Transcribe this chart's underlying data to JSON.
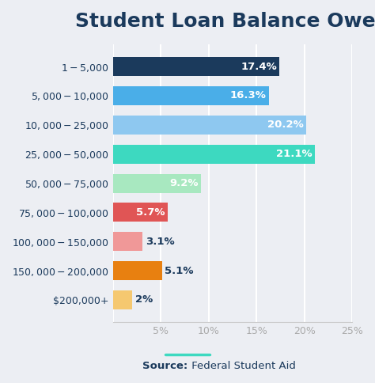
{
  "title": "Student Loan Balance Owed",
  "categories": [
    "$1-$5,000",
    "$5,000-$10,000",
    "$10,000-$25,000",
    "$25,000-$50,000",
    "$50,000-$75,000",
    "$75,000-$100,000",
    "$100,000-$150,000",
    "$150,000-$200,000",
    "$200,000+"
  ],
  "values": [
    17.4,
    16.3,
    20.2,
    21.1,
    9.2,
    5.7,
    3.1,
    5.1,
    2.0
  ],
  "labels": [
    "17.4%",
    "16.3%",
    "20.2%",
    "21.1%",
    "9.2%",
    "5.7%",
    "3.1%",
    "5.1%",
    "2%"
  ],
  "bar_colors": [
    "#1b3a5c",
    "#4aaee8",
    "#8ec8f0",
    "#3dd9c0",
    "#a8e8c0",
    "#e05555",
    "#f09898",
    "#e88010",
    "#f5c870"
  ],
  "label_colors_white": [
    true,
    true,
    true,
    true,
    true,
    true,
    false,
    false,
    false
  ],
  "label_inside": [
    true,
    true,
    true,
    true,
    true,
    true,
    false,
    false,
    false
  ],
  "background_color": "#eceef3",
  "xlim": [
    0,
    25
  ],
  "xticks": [
    0,
    5,
    10,
    15,
    20,
    25
  ],
  "xtick_labels": [
    "",
    "5%",
    "10%",
    "15%",
    "20%",
    "25%"
  ],
  "source_text": "Federal Student Aid",
  "source_label": "Source:",
  "title_fontsize": 18,
  "label_fontsize": 9.5,
  "tick_fontsize": 9,
  "text_color": "#1b3a5c",
  "teal_line_color": "#3dd9c0"
}
